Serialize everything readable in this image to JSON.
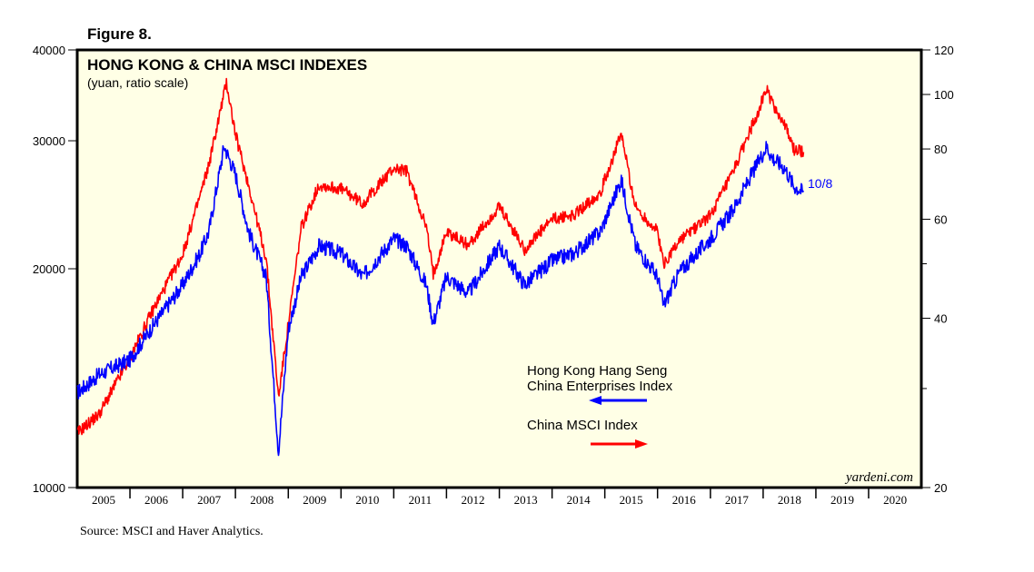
{
  "figure_label": "Figure 8.",
  "source": "Source: MSCI and Haver Analytics.",
  "chart_data": {
    "type": "line",
    "title": "HONG KONG & CHINA MSCI INDEXES",
    "subtitle": "(yuan, ratio scale)",
    "watermark": "yardeni.com",
    "end_label": "10/8",
    "x_range": [
      "2005-01-01",
      "2020-12-31"
    ],
    "x_tick_labels": [
      "2005",
      "2006",
      "2007",
      "2008",
      "2009",
      "2010",
      "2011",
      "2012",
      "2013",
      "2014",
      "2015",
      "2016",
      "2017",
      "2018",
      "2019",
      "2020"
    ],
    "y_left": {
      "scale": "log",
      "range": [
        10000,
        40000
      ],
      "ticks": [
        10000,
        20000,
        30000,
        40000
      ]
    },
    "y_right": {
      "scale": "log",
      "range": [
        20,
        120
      ],
      "ticks": [
        20,
        40,
        60,
        80,
        100,
        120
      ]
    },
    "background": "#ffffe6",
    "grid": false,
    "legend": [
      {
        "text_lines": [
          "Hong Kong Hang Seng",
          "China Enterprises Index"
        ],
        "color": "#0000ff",
        "arrow": "left",
        "axis": "left"
      },
      {
        "text_lines": [
          "China MSCI Index"
        ],
        "color": "#ff0000",
        "arrow": "right",
        "axis": "right"
      }
    ],
    "series": [
      {
        "name": "Hong Kong Hang Seng China Enterprises Index",
        "axis": "left",
        "color": "#0000ff",
        "x": [
          "2005-01-01",
          "2005-06-01",
          "2006-01-01",
          "2006-06-01",
          "2007-01-01",
          "2007-05-01",
          "2007-07-01",
          "2007-10-15",
          "2008-01-01",
          "2008-04-01",
          "2008-08-01",
          "2008-10-25",
          "2009-01-01",
          "2009-04-01",
          "2009-08-01",
          "2010-01-01",
          "2010-06-01",
          "2011-01-01",
          "2011-04-01",
          "2011-08-15",
          "2011-10-01",
          "2012-01-01",
          "2012-06-01",
          "2013-01-01",
          "2013-06-25",
          "2014-01-01",
          "2014-06-01",
          "2014-12-01",
          "2015-04-25",
          "2015-08-01",
          "2016-01-01",
          "2016-02-12",
          "2016-06-01",
          "2017-01-01",
          "2017-06-01",
          "2018-01-26",
          "2018-03-01",
          "2018-06-01",
          "2018-08-01",
          "2018-10-08"
        ],
        "values": [
          13500,
          14300,
          15000,
          16600,
          19000,
          21000,
          22500,
          29500,
          27000,
          22500,
          19500,
          11200,
          16500,
          19500,
          21500,
          21000,
          19500,
          22000,
          21500,
          19000,
          16800,
          19500,
          18500,
          21500,
          19000,
          20500,
          21000,
          22500,
          26500,
          21500,
          19500,
          17800,
          19800,
          22000,
          24000,
          29500,
          28500,
          27500,
          26000,
          25500
        ]
      },
      {
        "name": "China MSCI Index",
        "axis": "right",
        "color": "#ff0000",
        "x": [
          "2005-01-01",
          "2005-06-01",
          "2006-01-01",
          "2006-06-01",
          "2007-01-01",
          "2007-05-01",
          "2007-07-01",
          "2007-10-31",
          "2008-01-01",
          "2008-04-01",
          "2008-08-01",
          "2008-10-25",
          "2009-01-01",
          "2009-04-01",
          "2009-08-01",
          "2010-01-01",
          "2010-06-01",
          "2011-01-01",
          "2011-04-01",
          "2011-08-15",
          "2011-10-01",
          "2012-01-01",
          "2012-06-01",
          "2013-01-01",
          "2013-06-25",
          "2014-01-01",
          "2014-06-01",
          "2014-12-01",
          "2015-04-25",
          "2015-08-01",
          "2016-01-01",
          "2016-02-12",
          "2016-06-01",
          "2017-01-01",
          "2017-06-01",
          "2018-01-26",
          "2018-03-01",
          "2018-06-01",
          "2018-08-01",
          "2018-10-08"
        ],
        "values": [
          25,
          27,
          34,
          41,
          52,
          66,
          75,
          105,
          85,
          69,
          51,
          29,
          39,
          58,
          69,
          68,
          64,
          74,
          73,
          58,
          48,
          57,
          54,
          63,
          53,
          60,
          61,
          67,
          85,
          63,
          57,
          50,
          55,
          61,
          72,
          102,
          97,
          88,
          80,
          79
        ]
      }
    ]
  }
}
